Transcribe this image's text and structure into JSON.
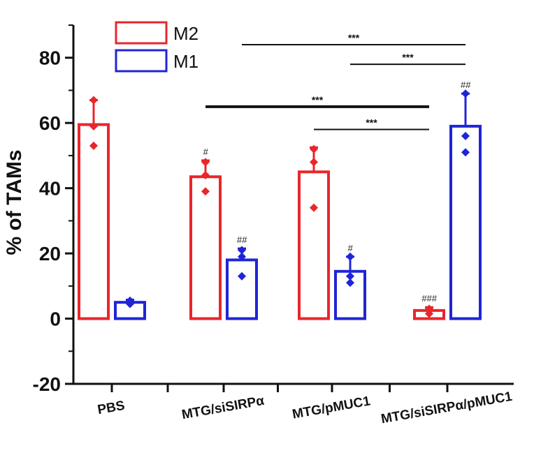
{
  "chart_data": {
    "type": "bar",
    "ylabel": "% of TAMs",
    "ylim": [
      -20,
      90
    ],
    "yticks": [
      -20,
      0,
      20,
      40,
      60,
      80
    ],
    "categories": [
      "PBS",
      "MTG/siSIRPα",
      "MTG/pMUC1",
      "MTG/siSIRPα/pMUC1"
    ],
    "series": [
      {
        "name": "M2",
        "color": "#e8262b",
        "values": [
          59.5,
          43.5,
          45,
          2.5
        ],
        "errors": [
          7.5,
          5,
          7.5,
          1
        ],
        "points": [
          [
            67,
            53,
            59
          ],
          [
            48,
            39,
            44
          ],
          [
            52,
            34,
            48
          ],
          [
            3,
            1.5,
            2.5
          ]
        ],
        "annotations": [
          "",
          "#",
          "",
          "###"
        ]
      },
      {
        "name": "M1",
        "color": "#1f25d6",
        "values": [
          5,
          18,
          14.5,
          59
        ],
        "errors": [
          0.8,
          3.5,
          4.5,
          10
        ],
        "points": [
          [
            5.5,
            4.5,
            5
          ],
          [
            21,
            13,
            19
          ],
          [
            19,
            11,
            13
          ],
          [
            69,
            51,
            56
          ]
        ],
        "annotations": [
          "",
          "##",
          "#",
          "##"
        ]
      }
    ],
    "significance": [
      {
        "from": "MTG/siSIRPα:M1",
        "to": "MTG/siSIRPα/pMUC1:M1",
        "label": "***",
        "y": 84
      },
      {
        "from": "MTG/pMUC1:M1",
        "to": "MTG/siSIRPα/pMUC1:M1",
        "label": "***",
        "y": 78
      },
      {
        "from": "MTG/siSIRPα:M2",
        "to": "MTG/siSIRPα/pMUC1:M2",
        "label": "***",
        "y": 65
      },
      {
        "from": "MTG/pMUC1:M2",
        "to": "MTG/siSIRPα/pMUC1:M2",
        "label": "***",
        "y": 58
      }
    ],
    "legend": {
      "placement": "top-left",
      "entries": [
        "M2",
        "M1"
      ]
    },
    "grid": false
  }
}
